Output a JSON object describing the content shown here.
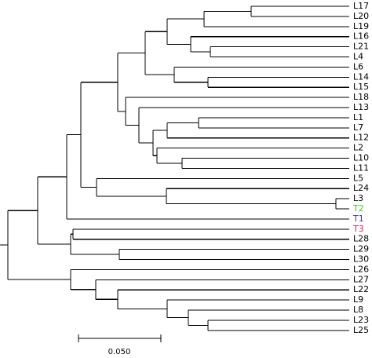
{
  "tree": {
    "leaves": [
      {
        "label": "L17",
        "color": "#000000"
      },
      {
        "label": "L20",
        "color": "#000000"
      },
      {
        "label": "L19",
        "color": "#000000"
      },
      {
        "label": "L16",
        "color": "#000000"
      },
      {
        "label": "L21",
        "color": "#000000"
      },
      {
        "label": "L4",
        "color": "#000000"
      },
      {
        "label": "L6",
        "color": "#000000"
      },
      {
        "label": "L14",
        "color": "#000000"
      },
      {
        "label": "L15",
        "color": "#000000"
      },
      {
        "label": "L18",
        "color": "#000000"
      },
      {
        "label": "L13",
        "color": "#000000"
      },
      {
        "label": "L1",
        "color": "#000000"
      },
      {
        "label": "L7",
        "color": "#000000"
      },
      {
        "label": "L12",
        "color": "#000000"
      },
      {
        "label": "L2",
        "color": "#000000"
      },
      {
        "label": "L10",
        "color": "#000000"
      },
      {
        "label": "L11",
        "color": "#000000"
      },
      {
        "label": "L5",
        "color": "#000000"
      },
      {
        "label": "L24",
        "color": "#000000"
      },
      {
        "label": "L3",
        "color": "#000000"
      },
      {
        "label": "T2",
        "color": "#44cc22"
      },
      {
        "label": "T1",
        "color": "#3a3aa8"
      },
      {
        "label": "T3",
        "color": "#e0206a"
      },
      {
        "label": "L28",
        "color": "#000000"
      },
      {
        "label": "L29",
        "color": "#000000"
      },
      {
        "label": "L30",
        "color": "#000000"
      },
      {
        "label": "L26",
        "color": "#000000"
      },
      {
        "label": "L27",
        "color": "#000000"
      },
      {
        "label": "L22",
        "color": "#000000"
      },
      {
        "label": "L9",
        "color": "#000000"
      },
      {
        "label": "L8",
        "color": "#000000"
      },
      {
        "label": "L23",
        "color": "#000000"
      },
      {
        "label": "L25",
        "color": "#000000"
      }
    ],
    "scale_bar": {
      "label": "0.050"
    }
  }
}
